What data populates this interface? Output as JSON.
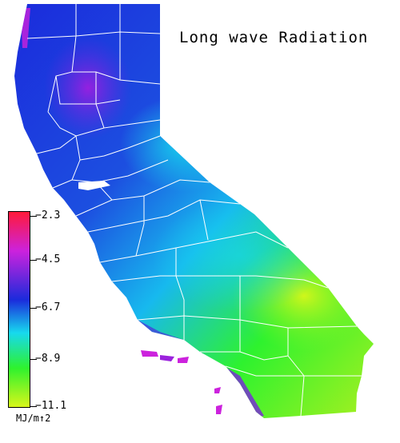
{
  "map": {
    "title": "Long wave Radiation",
    "region": "California",
    "county_line_color": "#ffffff"
  },
  "legend": {
    "unit": "MJ/m↑2",
    "tick_labels": [
      "−2.3",
      "−4.5",
      "−6.7",
      "−8.9",
      "−11.1"
    ],
    "colors": [
      "#ff1a3a",
      "#cc22dd",
      "#1b2bdc",
      "#17d9ee",
      "#2ef22e",
      "#d8f61a"
    ]
  }
}
